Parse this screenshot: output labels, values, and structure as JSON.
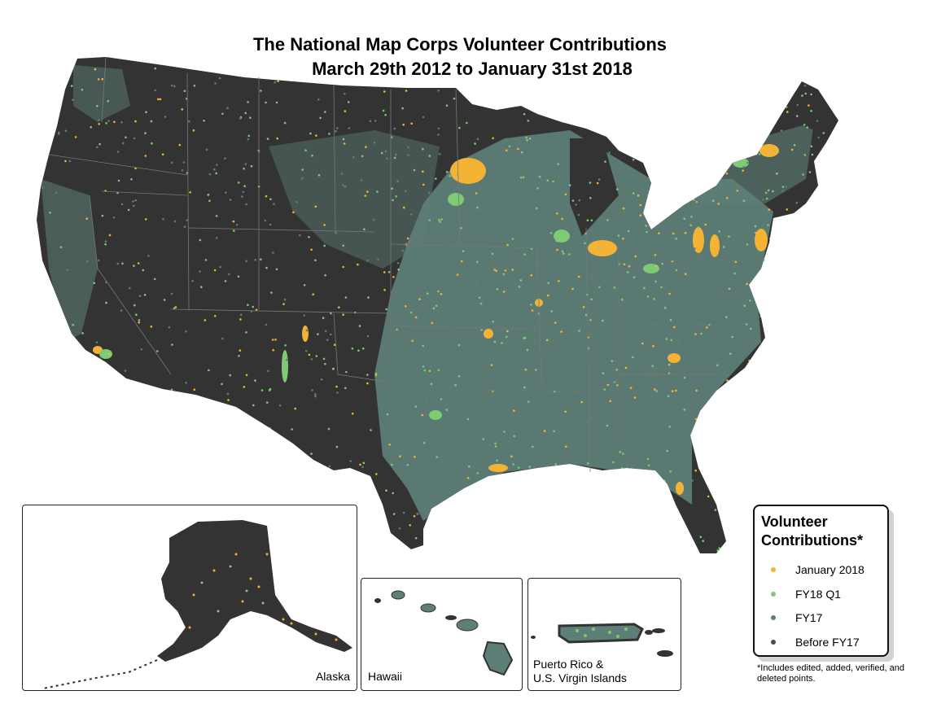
{
  "title": {
    "line1": "The National Map Corps Volunteer Contributions",
    "line2": "March 29th 2012 to January 31st 2018"
  },
  "legend": {
    "title_line1": "Volunteer",
    "title_line2": "Contributions*",
    "items": [
      {
        "label": "January 2018",
        "color": "#f5b335"
      },
      {
        "label": "FY18 Q1",
        "color": "#7ecb73"
      },
      {
        "label": "FY17",
        "color": "#5e7f78"
      },
      {
        "label": "Before FY17",
        "color": "#4a4a4a"
      }
    ]
  },
  "footnote": "*Includes edited, added, verified, and deleted points.",
  "insets": {
    "alaska": "Alaska",
    "hawaii": "Hawaii",
    "puerto_rico_line1": "Puerto Rico &",
    "puerto_rico_line2": "U.S. Virgin Islands"
  },
  "colors": {
    "land_base": "#333333",
    "state_border": "#777777"
  }
}
